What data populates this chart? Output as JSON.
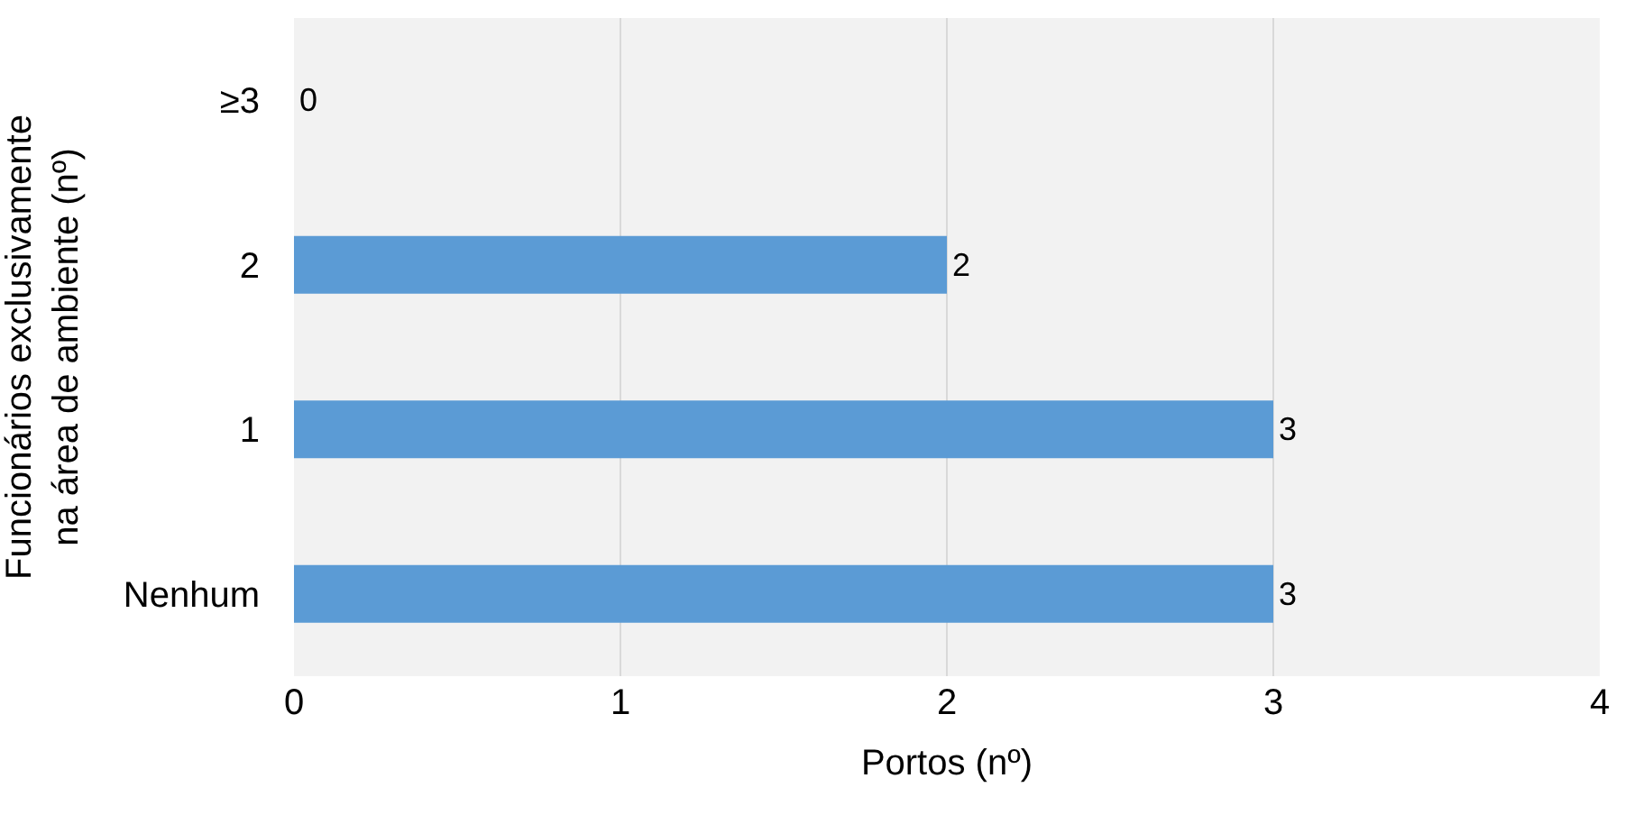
{
  "chart_data": {
    "type": "bar",
    "orientation": "horizontal",
    "categories": [
      "≥3",
      "2",
      "1",
      "Nenhum"
    ],
    "values": [
      0,
      2,
      3,
      3
    ],
    "color": "#5b9bd5",
    "xlabel": "Portos (nº)",
    "ylabel": "Funcionários exclusivamente\nna área de ambiente (nº)",
    "xlim": [
      0,
      4
    ],
    "xticks": [
      0,
      1,
      2,
      3,
      4
    ],
    "grid": "x",
    "data_labels": true
  }
}
